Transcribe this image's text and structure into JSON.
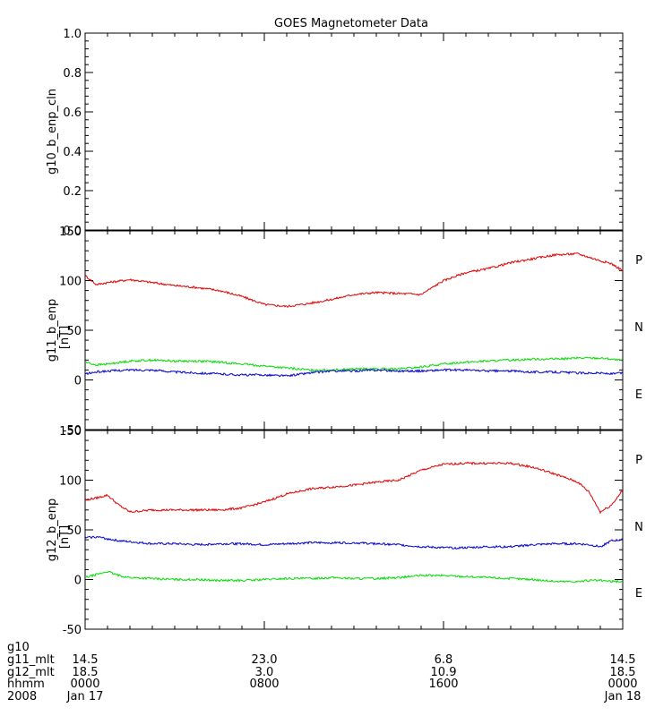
{
  "title": "GOES Magnetometer Data",
  "colors": {
    "P": "#e00000",
    "N": "#00dd00",
    "E": "#0000cc",
    "axis": "#000000"
  },
  "panels": [
    {
      "ylabel": "g10_b_enp_cln",
      "units": "",
      "ylim": [
        0.0,
        1.0
      ],
      "yticks": [
        "0.0",
        "0.2",
        "0.4",
        "0.6",
        "0.8",
        "1.0"
      ],
      "ytick_values": [
        0.0,
        0.2,
        0.4,
        0.6,
        0.8,
        1.0
      ],
      "legend": []
    },
    {
      "ylabel": "g11_b_enp",
      "units": "[nT]",
      "ylim": [
        -50,
        150
      ],
      "yticks": [
        "-50",
        "0",
        "50",
        "100",
        "150"
      ],
      "ytick_values": [
        -50,
        0,
        50,
        100,
        150
      ],
      "legend": [
        {
          "text": "P",
          "color_key": "P"
        },
        {
          "text": "N",
          "color_key": "N"
        },
        {
          "text": "E",
          "color_key": "E"
        }
      ]
    },
    {
      "ylabel": "g12_b_enp",
      "units": "[nT]",
      "ylim": [
        -50,
        150
      ],
      "yticks": [
        "-50",
        "0",
        "50",
        "100",
        "150"
      ],
      "ytick_values": [
        -50,
        0,
        50,
        100,
        150
      ],
      "legend": [
        {
          "text": "P",
          "color_key": "P"
        },
        {
          "text": "N",
          "color_key": "N"
        },
        {
          "text": "E",
          "color_key": "E"
        }
      ]
    }
  ],
  "footer": {
    "row_labels": [
      "g10",
      "g11_mlt",
      "g12_mlt",
      "hhmm",
      "2008"
    ],
    "columns": [
      {
        "g10": "",
        "g11_mlt": "14.5",
        "g12_mlt": "18.5",
        "hhmm": "0000",
        "date": "Jan 17"
      },
      {
        "g10": "",
        "g11_mlt": "23.0",
        "g12_mlt": "3.0",
        "hhmm": "0800",
        "date": ""
      },
      {
        "g10": "",
        "g11_mlt": "6.8",
        "g12_mlt": "10.9",
        "hhmm": "1600",
        "date": ""
      },
      {
        "g10": "",
        "g11_mlt": "14.5",
        "g12_mlt": "18.5",
        "hhmm": "0000",
        "date": "Jan 18"
      }
    ]
  },
  "chart_data": [
    {
      "type": "line",
      "title": "GOES Magnetometer Data",
      "ylabel": "g10_b_enp_cln",
      "xlabel": "",
      "x_unit": "hours since 2008 Jan 17 0000",
      "xlim": [
        0,
        24
      ],
      "ylim": [
        0.0,
        1.0
      ],
      "series": []
    },
    {
      "type": "line",
      "ylabel": "g11_b_enp [nT]",
      "xlim": [
        0,
        24
      ],
      "ylim": [
        -50,
        150
      ],
      "x": [
        0,
        0.5,
        1,
        2,
        3,
        4,
        5,
        6,
        7,
        8,
        9,
        10,
        11,
        12,
        13,
        14,
        15,
        16,
        17,
        18,
        19,
        20,
        21,
        22,
        23,
        23.5,
        24
      ],
      "series": [
        {
          "name": "P",
          "values": [
            105,
            96,
            98,
            101,
            98,
            95,
            93,
            90,
            84,
            76,
            74,
            77,
            81,
            86,
            88,
            87,
            86,
            100,
            108,
            112,
            118,
            122,
            126,
            127,
            120,
            117,
            110
          ]
        },
        {
          "name": "N",
          "values": [
            18,
            15,
            16,
            19,
            20,
            19,
            19,
            18,
            16,
            14,
            12,
            10,
            10,
            11,
            11,
            11,
            13,
            16,
            18,
            19,
            20,
            21,
            21,
            22,
            22,
            21,
            19
          ]
        },
        {
          "name": "E",
          "values": [
            6,
            8,
            9,
            10,
            10,
            8,
            7,
            6,
            5,
            5,
            4,
            7,
            9,
            9,
            10,
            9,
            9,
            10,
            10,
            9,
            9,
            8,
            8,
            7,
            7,
            6,
            7
          ]
        }
      ]
    },
    {
      "type": "line",
      "ylabel": "g12_b_enp [nT]",
      "xlim": [
        0,
        24
      ],
      "ylim": [
        -50,
        150
      ],
      "x": [
        0,
        0.5,
        1,
        1.5,
        2,
        3,
        4,
        5,
        6,
        7,
        8,
        9,
        10,
        11,
        12,
        13,
        14,
        15,
        16,
        17,
        18,
        19,
        20,
        21,
        22,
        22.5,
        23,
        23.5,
        24
      ],
      "series": [
        {
          "name": "P",
          "values": [
            80,
            82,
            85,
            75,
            68,
            70,
            70,
            70,
            70,
            72,
            78,
            86,
            91,
            93,
            95,
            98,
            100,
            110,
            116,
            117,
            117,
            117,
            113,
            106,
            98,
            88,
            68,
            75,
            90
          ]
        },
        {
          "name": "N",
          "values": [
            2,
            5,
            8,
            4,
            2,
            1,
            0,
            0,
            -1,
            -1,
            0,
            1,
            1,
            2,
            1,
            1,
            2,
            4,
            4,
            3,
            2,
            1,
            0,
            -2,
            -2,
            -1,
            -1,
            -2,
            -2
          ]
        },
        {
          "name": "E",
          "values": [
            42,
            43,
            41,
            39,
            38,
            36,
            36,
            35,
            36,
            36,
            35,
            36,
            37,
            37,
            37,
            36,
            35,
            33,
            32,
            32,
            33,
            33,
            35,
            36,
            36,
            35,
            33,
            39,
            40
          ]
        }
      ]
    }
  ]
}
